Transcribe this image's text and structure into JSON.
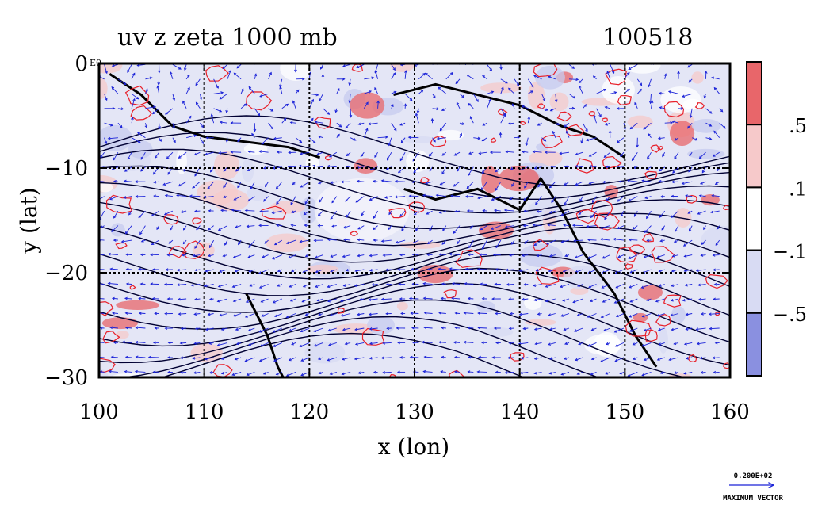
{
  "chart_data": {
    "type": "heatmap",
    "title": "uv z zeta 1000 mb",
    "date_label": "100518",
    "xlabel": "x (lon)",
    "ylabel": "y (lat)",
    "xlim": [
      100,
      160
    ],
    "ylim": [
      -30,
      0
    ],
    "x_ticks": [
      100,
      110,
      120,
      130,
      140,
      150,
      160
    ],
    "x_tick_labels": [
      "100",
      "110",
      "120",
      "130",
      "140",
      "150",
      "160"
    ],
    "y_ticks": [
      0,
      -10,
      -20,
      -30
    ],
    "y_tick_labels": [
      "0",
      "−10",
      "−20",
      "−30"
    ],
    "y_top_suffix": "E0",
    "grid": true,
    "grid_style": "dashed",
    "colorbar": {
      "placement": "right",
      "levels": [
        {
          "range": "> .5",
          "color": "#e8666a"
        },
        {
          "range": ".1 to .5",
          "color": "#f6c9ca"
        },
        {
          "range": "-.1 to .1",
          "color": "#ffffff"
        },
        {
          "range": "-.5 to -.1",
          "color": "#d8dbf3"
        },
        {
          "range": "< -.5",
          "color": "#8a90e0"
        }
      ],
      "labels": [
        ".5",
        ".1",
        "−.1",
        "−.5"
      ]
    },
    "reference_vector": {
      "value_label": "0.200E+02",
      "caption": "MAXIMUM VECTOR"
    },
    "series_colors": {
      "vorticity_contour": "#e8202a",
      "wind_vectors": "#1a22d8",
      "geopotential_contour": "#000033"
    }
  }
}
